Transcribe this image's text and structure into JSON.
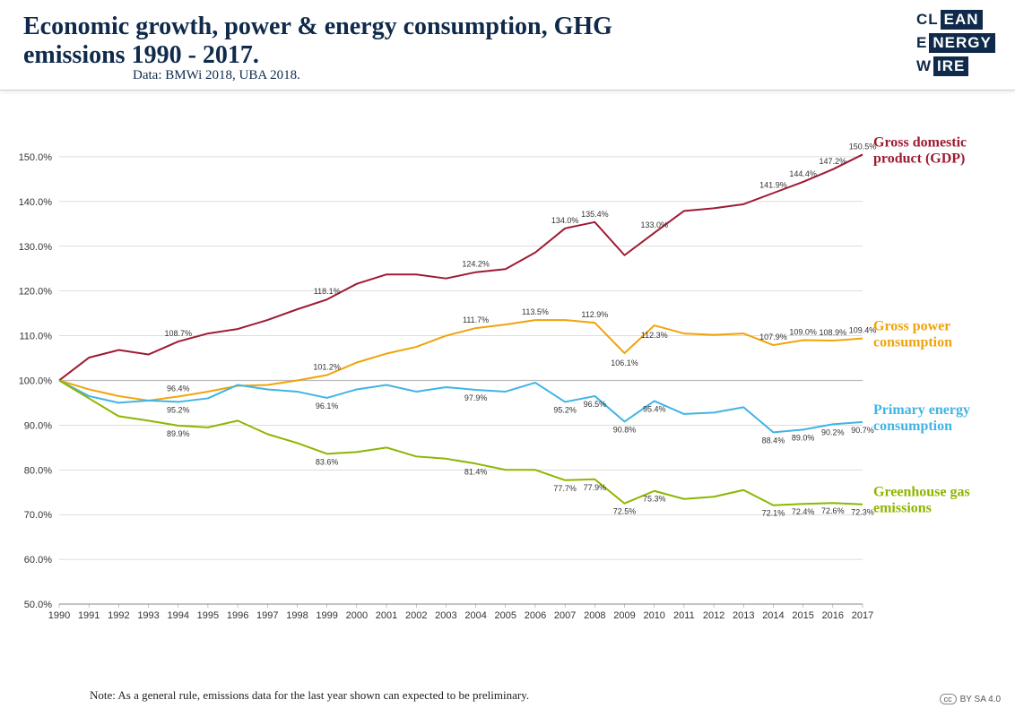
{
  "header": {
    "title": "Economic growth, power & energy consumption, GHG emissions 1990 - 2017.",
    "subtitle": "Data: BMWi 2018, UBA 2018.",
    "logo": {
      "a1": "CL",
      "b1": "EAN",
      "a2": "E",
      "b2": "NERGY",
      "a3": "W",
      "b3": "IRE"
    }
  },
  "note": "Note: As a general rule, emissions data for the last year shown can expected to be preliminary.",
  "cc": "BY SA 4.0",
  "chart": {
    "type": "line",
    "background_color": "#ffffff",
    "grid_color": "#888888",
    "baseline_color": "#888888",
    "axis_font_size": 11,
    "data_label_font_size": 9,
    "series_label_font_size": 16,
    "line_width": 2,
    "x": {
      "min": 1990,
      "max": 2017,
      "step": 1,
      "labels": [
        "1990",
        "1991",
        "1992",
        "1993",
        "1994",
        "1995",
        "1996",
        "1997",
        "1998",
        "1999",
        "2000",
        "2001",
        "2002",
        "2003",
        "2004",
        "2005",
        "2006",
        "2007",
        "2008",
        "2009",
        "2010",
        "2011",
        "2012",
        "2013",
        "2014",
        "2015",
        "2016",
        "2017"
      ]
    },
    "y": {
      "min": 50,
      "max": 155,
      "ticks": [
        50,
        60,
        70,
        80,
        90,
        100,
        110,
        120,
        130,
        140,
        150
      ],
      "fmt": "{v}.0%",
      "baseline": 100
    },
    "series": [
      {
        "name": "Gross domestic product (GDP)",
        "color": "#9e1b32",
        "values": [
          100.0,
          105.1,
          106.8,
          105.8,
          108.7,
          110.5,
          111.5,
          113.5,
          115.9,
          118.1,
          121.6,
          123.7,
          123.7,
          122.8,
          124.2,
          124.9,
          128.6,
          134.0,
          135.4,
          128.0,
          133.0,
          137.9,
          138.5,
          139.4,
          141.9,
          144.4,
          147.2,
          150.5
        ],
        "labels": {
          "1994": "108.7%",
          "1999": "118.1%",
          "2004": "124.2%",
          "2007": "134.0%",
          "2008": "135.4%",
          "2010": "133.0%",
          "2014": "141.9%",
          "2015": "144.4%",
          "2016": "147.2%",
          "2017": "150.5%"
        },
        "label_side": "above"
      },
      {
        "name": "Gross power consumption",
        "color": "#f0a30a",
        "values": [
          100.0,
          98.0,
          96.5,
          95.5,
          96.4,
          97.5,
          98.8,
          99.0,
          100.0,
          101.2,
          104.0,
          106.0,
          107.5,
          110.0,
          111.7,
          112.5,
          113.5,
          113.5,
          112.9,
          106.1,
          112.3,
          110.5,
          110.2,
          110.5,
          107.9,
          109.0,
          108.9,
          109.4
        ],
        "labels": {
          "1994": "96.4%",
          "1999": "101.2%",
          "2004": "111.7%",
          "2006": "113.5%",
          "2008": "112.9%",
          "2009": "106.1%",
          "2010": "112.3%",
          "2014": "107.9%",
          "2015": "109.0%",
          "2016": "108.9%",
          "2017": "109.4%"
        },
        "label_side": "mixed"
      },
      {
        "name": "Primary energy consumption",
        "color": "#3fb4e6",
        "values": [
          100.0,
          96.5,
          95.0,
          95.5,
          95.2,
          96.0,
          99.0,
          98.0,
          97.5,
          96.1,
          98.0,
          99.0,
          97.5,
          98.5,
          97.9,
          97.5,
          99.5,
          95.2,
          96.5,
          90.8,
          95.4,
          92.5,
          92.8,
          94.0,
          88.4,
          89.0,
          90.2,
          90.7
        ],
        "labels": {
          "1994": "95.2%",
          "1999": "96.1%",
          "2004": "97.9%",
          "2007": "95.2%",
          "2008": "96.5%",
          "2009": "90.8%",
          "2010": "95.4%",
          "2014": "88.4%",
          "2015": "89.0%",
          "2016": "90.2%",
          "2017": "90.7%"
        },
        "label_side": "below"
      },
      {
        "name": "Greenhouse gas emissions",
        "color": "#8db600",
        "values": [
          100.0,
          96.0,
          92.0,
          91.0,
          89.9,
          89.5,
          91.0,
          88.0,
          86.0,
          83.6,
          84.0,
          85.0,
          83.0,
          82.5,
          81.4,
          80.0,
          80.0,
          77.7,
          77.9,
          72.5,
          75.3,
          73.5,
          74.0,
          75.5,
          72.1,
          72.4,
          72.6,
          72.3
        ],
        "labels": {
          "1994": "89.9%",
          "1999": "83.6%",
          "2004": "81.4%",
          "2007": "77.7%",
          "2008": "77.9%",
          "2009": "72.5%",
          "2010": "75.3%",
          "2014": "72.1%",
          "2015": "72.4%",
          "2016": "72.6%",
          "2017": "72.3%"
        },
        "label_side": "below"
      }
    ]
  }
}
